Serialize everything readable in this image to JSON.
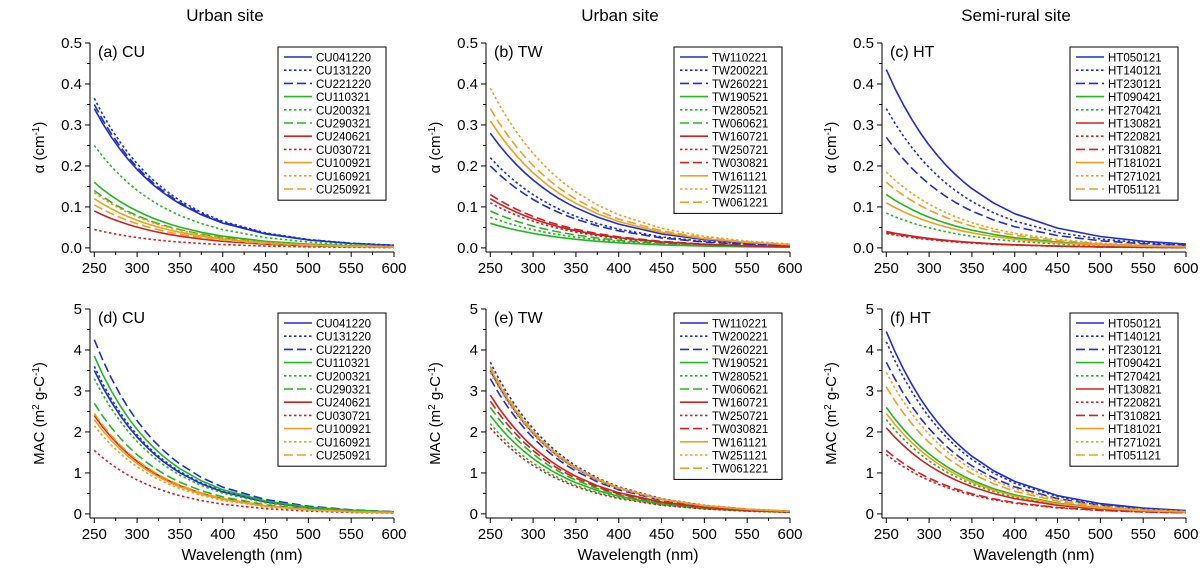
{
  "column_titles": [
    "Urban site",
    "Urban site",
    "Semi-rural site"
  ],
  "colors": {
    "blue": "#1f2fd0",
    "green": "#22b822",
    "red": "#d42020",
    "orange": "#f0a020"
  },
  "chart_data": [
    {
      "type": "line",
      "panel_label": "(a) CU",
      "xlabel": "",
      "ylabel": "α (cm",
      "ylabel_sup": "-1",
      "ylabel_end": ")",
      "xlim": [
        245,
        600
      ],
      "ylim": [
        -0.01,
        0.5
      ],
      "xticks": [
        250,
        300,
        350,
        400,
        450,
        500,
        550,
        600
      ],
      "yticks": [
        0.0,
        0.1,
        0.2,
        0.3,
        0.4,
        0.5
      ],
      "ytick_labels": [
        "0.0",
        "0.1",
        "0.2",
        "0.3",
        "0.4",
        "0.5"
      ],
      "legend": "top-right",
      "decay_per_nm": 0.0115,
      "x": [
        250,
        260,
        270,
        280,
        290,
        300,
        310,
        320,
        330,
        340,
        350,
        375,
        400,
        450,
        500,
        550,
        600
      ],
      "series": [
        {
          "name": "CU041220",
          "color": "blue",
          "dash": "solid",
          "y0": 0.34
        },
        {
          "name": "CU131220",
          "color": "blue",
          "dash": "dot",
          "y0": 0.365
        },
        {
          "name": "CU221220",
          "color": "blue",
          "dash": "dash",
          "y0": 0.35
        },
        {
          "name": "CU110321",
          "color": "green",
          "dash": "solid",
          "y0": 0.16
        },
        {
          "name": "CU200321",
          "color": "green",
          "dash": "dot",
          "y0": 0.25
        },
        {
          "name": "CU290321",
          "color": "green",
          "dash": "dash",
          "y0": 0.14
        },
        {
          "name": "CU240621",
          "color": "red",
          "dash": "solid",
          "y0": 0.09
        },
        {
          "name": "CU030721",
          "color": "red",
          "dash": "dot",
          "y0": 0.045
        },
        {
          "name": "CU100921",
          "color": "orange",
          "dash": "solid",
          "y0": 0.12
        },
        {
          "name": "CU160921",
          "color": "orange",
          "dash": "dot",
          "y0": 0.135
        },
        {
          "name": "CU250921",
          "color": "orange",
          "dash": "dash",
          "y0": 0.105
        }
      ]
    },
    {
      "type": "line",
      "panel_label": "(b) TW",
      "xlabel": "",
      "ylabel": "α (cm",
      "ylabel_sup": "-1",
      "ylabel_end": ")",
      "xlim": [
        245,
        600
      ],
      "ylim": [
        -0.01,
        0.5
      ],
      "xticks": [
        250,
        300,
        350,
        400,
        450,
        500,
        550,
        600
      ],
      "yticks": [
        0.0,
        0.1,
        0.2,
        0.3,
        0.4,
        0.5
      ],
      "ytick_labels": [
        "0.0",
        "0.1",
        "0.2",
        "0.3",
        "0.4",
        "0.5"
      ],
      "legend": "top-right",
      "decay_per_nm": 0.0105,
      "x": [
        250,
        260,
        270,
        280,
        290,
        300,
        310,
        320,
        330,
        340,
        350,
        375,
        400,
        450,
        500,
        550,
        600
      ],
      "series": [
        {
          "name": "TW110221",
          "color": "blue",
          "dash": "solid",
          "y0": 0.28
        },
        {
          "name": "TW200221",
          "color": "blue",
          "dash": "dot",
          "y0": 0.22
        },
        {
          "name": "TW260221",
          "color": "blue",
          "dash": "dash",
          "y0": 0.2
        },
        {
          "name": "TW190521",
          "color": "green",
          "dash": "solid",
          "y0": 0.06
        },
        {
          "name": "TW280521",
          "color": "green",
          "dash": "dot",
          "y0": 0.075
        },
        {
          "name": "TW060621",
          "color": "green",
          "dash": "dash",
          "y0": 0.09
        },
        {
          "name": "TW160721",
          "color": "red",
          "dash": "solid",
          "y0": 0.12
        },
        {
          "name": "TW250721",
          "color": "red",
          "dash": "dot",
          "y0": 0.11
        },
        {
          "name": "TW030821",
          "color": "red",
          "dash": "dash",
          "y0": 0.13
        },
        {
          "name": "TW161121",
          "color": "orange",
          "dash": "solid",
          "y0": 0.31
        },
        {
          "name": "TW251121",
          "color": "orange",
          "dash": "dot",
          "y0": 0.39
        },
        {
          "name": "TW061221",
          "color": "orange",
          "dash": "dash",
          "y0": 0.34
        }
      ]
    },
    {
      "type": "line",
      "panel_label": "(c) HT",
      "xlabel": "",
      "ylabel": "α (cm",
      "ylabel_sup": "-1",
      "ylabel_end": ")",
      "xlim": [
        245,
        600
      ],
      "ylim": [
        -0.01,
        0.5
      ],
      "xticks": [
        250,
        300,
        350,
        400,
        450,
        500,
        550,
        600
      ],
      "yticks": [
        0.0,
        0.1,
        0.2,
        0.3,
        0.4,
        0.5
      ],
      "ytick_labels": [
        "0.0",
        "0.1",
        "0.2",
        "0.3",
        "0.4",
        "0.5"
      ],
      "legend": "top-right",
      "decay_per_nm": 0.011,
      "x": [
        250,
        260,
        270,
        280,
        290,
        300,
        310,
        320,
        330,
        340,
        350,
        375,
        400,
        450,
        500,
        550,
        600
      ],
      "series": [
        {
          "name": "HT050121",
          "color": "blue",
          "dash": "solid",
          "y0": 0.435
        },
        {
          "name": "HT140121",
          "color": "blue",
          "dash": "dot",
          "y0": 0.34
        },
        {
          "name": "HT230121",
          "color": "blue",
          "dash": "dash",
          "y0": 0.27
        },
        {
          "name": "HT090421",
          "color": "green",
          "dash": "solid",
          "y0": 0.13
        },
        {
          "name": "HT270421",
          "color": "green",
          "dash": "dot",
          "y0": 0.085
        },
        {
          "name": "HT130821",
          "color": "red",
          "dash": "solid",
          "y0": 0.04
        },
        {
          "name": "HT220821",
          "color": "red",
          "dash": "dot",
          "y0": 0.035
        },
        {
          "name": "HT310821",
          "color": "red",
          "dash": "dash",
          "y0": 0.038
        },
        {
          "name": "HT181021",
          "color": "orange",
          "dash": "solid",
          "y0": 0.11
        },
        {
          "name": "HT271021",
          "color": "orange",
          "dash": "dot",
          "y0": 0.185
        },
        {
          "name": "HT051121",
          "color": "orange",
          "dash": "dash",
          "y0": 0.16
        }
      ]
    },
    {
      "type": "line",
      "panel_label": "(d) CU",
      "xlabel": "Wavelength (nm)",
      "ylabel": "MAC (m",
      "ylabel_sup": "2",
      "ylabel_mid": " g-C",
      "ylabel_sup2": "-1",
      "ylabel_end": ")",
      "xlim": [
        245,
        600
      ],
      "ylim": [
        -0.1,
        5
      ],
      "xticks": [
        250,
        300,
        350,
        400,
        450,
        500,
        550,
        600
      ],
      "yticks": [
        0,
        1,
        2,
        3,
        4,
        5
      ],
      "ytick_labels": [
        "0",
        "1",
        "2",
        "3",
        "4",
        "5"
      ],
      "legend": "top-right",
      "decay_per_nm": 0.0125,
      "x": [
        250,
        260,
        270,
        280,
        290,
        300,
        310,
        320,
        330,
        340,
        350,
        375,
        400,
        450,
        500,
        550,
        600
      ],
      "series": [
        {
          "name": "CU041220",
          "color": "blue",
          "dash": "solid",
          "y0": 3.5
        },
        {
          "name": "CU131220",
          "color": "blue",
          "dash": "dot",
          "y0": 3.6
        },
        {
          "name": "CU221220",
          "color": "blue",
          "dash": "dash",
          "y0": 4.25
        },
        {
          "name": "CU110321",
          "color": "green",
          "dash": "solid",
          "y0": 3.85
        },
        {
          "name": "CU200321",
          "color": "green",
          "dash": "dot",
          "y0": 3.3
        },
        {
          "name": "CU290321",
          "color": "green",
          "dash": "dash",
          "y0": 2.7
        },
        {
          "name": "CU240621",
          "color": "red",
          "dash": "solid",
          "y0": 2.4
        },
        {
          "name": "CU030721",
          "color": "red",
          "dash": "dot",
          "y0": 1.55
        },
        {
          "name": "CU100921",
          "color": "orange",
          "dash": "solid",
          "y0": 2.3
        },
        {
          "name": "CU160921",
          "color": "orange",
          "dash": "dot",
          "y0": 2.15
        },
        {
          "name": "CU250921",
          "color": "orange",
          "dash": "dash",
          "y0": 2.45
        }
      ]
    },
    {
      "type": "line",
      "panel_label": "(e) TW",
      "xlabel": "Wavelength (nm)",
      "ylabel": "MAC (m",
      "ylabel_sup": "2",
      "ylabel_mid": " g-C",
      "ylabel_sup2": "-1",
      "ylabel_end": ")",
      "xlim": [
        245,
        600
      ],
      "ylim": [
        -0.1,
        5
      ],
      "xticks": [
        250,
        300,
        350,
        400,
        450,
        500,
        550,
        600
      ],
      "yticks": [
        0,
        1,
        2,
        3,
        4,
        5
      ],
      "ytick_labels": [
        "0",
        "1",
        "2",
        "3",
        "4",
        "5"
      ],
      "legend": "top-right",
      "decay_per_nm": 0.0115,
      "x": [
        250,
        260,
        270,
        280,
        290,
        300,
        310,
        320,
        330,
        340,
        350,
        375,
        400,
        450,
        500,
        550,
        600
      ],
      "series": [
        {
          "name": "TW110221",
          "color": "blue",
          "dash": "solid",
          "y0": 3.5
        },
        {
          "name": "TW200221",
          "color": "blue",
          "dash": "dot",
          "y0": 3.7
        },
        {
          "name": "TW260221",
          "color": "blue",
          "dash": "dash",
          "y0": 3.3
        },
        {
          "name": "TW190521",
          "color": "green",
          "dash": "solid",
          "y0": 2.4
        },
        {
          "name": "TW280521",
          "color": "green",
          "dash": "dot",
          "y0": 2.2
        },
        {
          "name": "TW060621",
          "color": "green",
          "dash": "dash",
          "y0": 2.6
        },
        {
          "name": "TW160721",
          "color": "red",
          "dash": "solid",
          "y0": 2.9
        },
        {
          "name": "TW250721",
          "color": "red",
          "dash": "dot",
          "y0": 2.1
        },
        {
          "name": "TW030821",
          "color": "red",
          "dash": "dash",
          "y0": 2.75
        },
        {
          "name": "TW161121",
          "color": "orange",
          "dash": "solid",
          "y0": 3.55
        },
        {
          "name": "TW251121",
          "color": "orange",
          "dash": "dot",
          "y0": 3.45
        },
        {
          "name": "TW061221",
          "color": "orange",
          "dash": "dash",
          "y0": 3.6
        }
      ]
    },
    {
      "type": "line",
      "panel_label": "(f) HT",
      "xlabel": "Wavelength (nm)",
      "ylabel": "MAC (m",
      "ylabel_sup": "2",
      "ylabel_mid": " g-C",
      "ylabel_sup2": "-1",
      "ylabel_end": ")",
      "xlim": [
        245,
        600
      ],
      "ylim": [
        -0.1,
        5
      ],
      "xticks": [
        250,
        300,
        350,
        400,
        450,
        500,
        550,
        600
      ],
      "yticks": [
        0,
        1,
        2,
        3,
        4,
        5
      ],
      "ytick_labels": [
        "0",
        "1",
        "2",
        "3",
        "4",
        "5"
      ],
      "legend": "top-right",
      "decay_per_nm": 0.0115,
      "x": [
        250,
        260,
        270,
        280,
        290,
        300,
        310,
        320,
        330,
        340,
        350,
        375,
        400,
        450,
        500,
        550,
        600
      ],
      "series": [
        {
          "name": "HT050121",
          "color": "blue",
          "dash": "solid",
          "y0": 4.45
        },
        {
          "name": "HT140121",
          "color": "blue",
          "dash": "dot",
          "y0": 4.2
        },
        {
          "name": "HT230121",
          "color": "blue",
          "dash": "dash",
          "y0": 3.7
        },
        {
          "name": "HT090421",
          "color": "green",
          "dash": "solid",
          "y0": 2.6
        },
        {
          "name": "HT270421",
          "color": "green",
          "dash": "dot",
          "y0": 2.3
        },
        {
          "name": "HT130821",
          "color": "red",
          "dash": "solid",
          "y0": 2.1
        },
        {
          "name": "HT220821",
          "color": "red",
          "dash": "dot",
          "y0": 1.45
        },
        {
          "name": "HT310821",
          "color": "red",
          "dash": "dash",
          "y0": 1.55
        },
        {
          "name": "HT181021",
          "color": "orange",
          "dash": "solid",
          "y0": 2.45
        },
        {
          "name": "HT271021",
          "color": "orange",
          "dash": "dot",
          "y0": 3.45
        },
        {
          "name": "HT051121",
          "color": "orange",
          "dash": "dash",
          "y0": 3.1
        }
      ]
    }
  ]
}
